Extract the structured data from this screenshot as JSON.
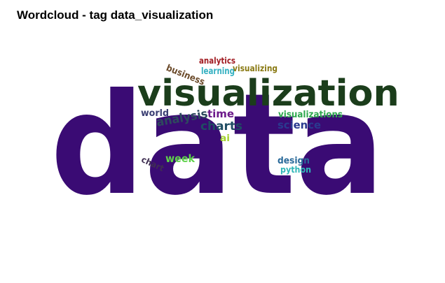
{
  "title": "Wordcloud -  tag data_visualization",
  "words": [
    {
      "text": "data",
      "color": "#3a0b74"
    },
    {
      "text": "visualization",
      "color": "#1b3d1b"
    },
    {
      "text": "analytics",
      "color": "#a11c22"
    },
    {
      "text": "business",
      "color": "#6b4a2a"
    },
    {
      "text": "learning",
      "color": "#35b1c2"
    },
    {
      "text": "visualizing",
      "color": "#8a7a14"
    },
    {
      "text": "world",
      "color": "#3b3f73"
    },
    {
      "text": "analysis",
      "color": "#2e4a5e"
    },
    {
      "text": "time",
      "color": "#6c1a8a"
    },
    {
      "text": "charts",
      "color": "#1f4d63"
    },
    {
      "text": "ai",
      "color": "#a3d22c"
    },
    {
      "text": "visualizations",
      "color": "#2fa84f"
    },
    {
      "text": "science",
      "color": "#2a3a8f"
    },
    {
      "text": "week",
      "color": "#5fd24b"
    },
    {
      "text": "chart",
      "color": "#3f2f52"
    },
    {
      "text": "design",
      "color": "#2a6a9a"
    },
    {
      "text": "python",
      "color": "#2fb6b8"
    }
  ]
}
